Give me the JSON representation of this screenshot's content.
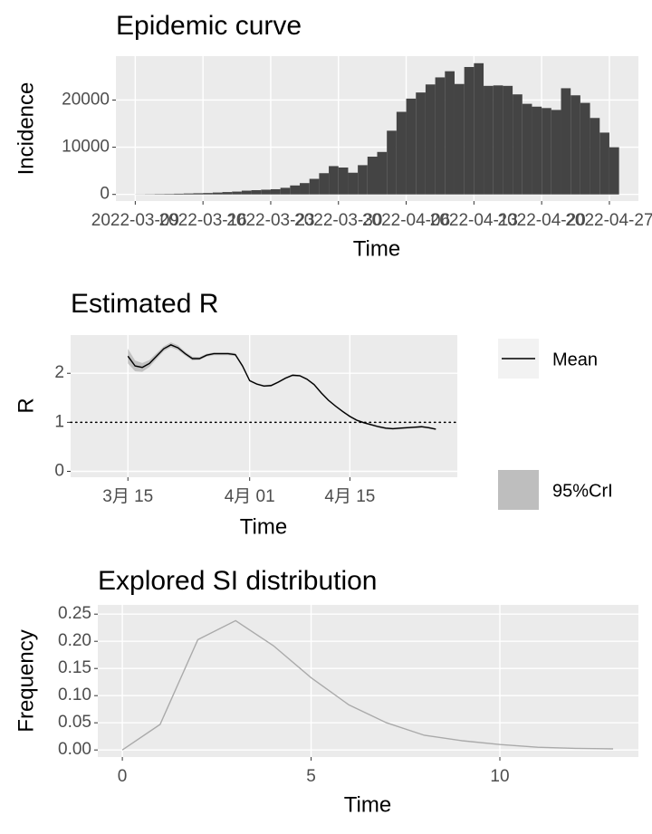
{
  "chart_data": [
    {
      "type": "bar",
      "title": "Epidemic curve",
      "xlabel": "Time",
      "ylabel": "Incidence",
      "x": [
        "2022-03-09",
        "2022-03-10",
        "2022-03-11",
        "2022-03-12",
        "2022-03-13",
        "2022-03-14",
        "2022-03-15",
        "2022-03-16",
        "2022-03-17",
        "2022-03-18",
        "2022-03-19",
        "2022-03-20",
        "2022-03-21",
        "2022-03-22",
        "2022-03-23",
        "2022-03-24",
        "2022-03-25",
        "2022-03-26",
        "2022-03-27",
        "2022-03-28",
        "2022-03-29",
        "2022-03-30",
        "2022-03-31",
        "2022-04-01",
        "2022-04-02",
        "2022-04-03",
        "2022-04-04",
        "2022-04-05",
        "2022-04-06",
        "2022-04-07",
        "2022-04-08",
        "2022-04-09",
        "2022-04-10",
        "2022-04-11",
        "2022-04-12",
        "2022-04-13",
        "2022-04-14",
        "2022-04-15",
        "2022-04-16",
        "2022-04-17",
        "2022-04-18",
        "2022-04-19",
        "2022-04-20",
        "2022-04-21",
        "2022-04-22",
        "2022-04-23",
        "2022-04-24",
        "2022-04-25",
        "2022-04-26",
        "2022-04-27"
      ],
      "values": [
        30,
        50,
        80,
        100,
        150,
        200,
        250,
        300,
        400,
        500,
        600,
        800,
        900,
        1000,
        1100,
        1400,
        1900,
        2400,
        3300,
        4500,
        6000,
        5700,
        4600,
        6200,
        8000,
        9000,
        13500,
        17500,
        20300,
        21600,
        23300,
        24800,
        26100,
        23400,
        27000,
        27800,
        23000,
        23100,
        23000,
        21200,
        19200,
        18600,
        18300,
        17900,
        22500,
        21000,
        19400,
        16200,
        13100,
        10000
      ],
      "color": "#444444",
      "xlim": [
        "2022-03-07",
        "2022-04-30"
      ],
      "xticks": [
        "2022-03-09",
        "2022-03-16",
        "2022-03-23",
        "2022-03-30",
        "2022-04-06",
        "2022-04-13",
        "2022-04-20",
        "2022-04-27"
      ],
      "ylim": [
        -1400,
        29300
      ],
      "yticks": [
        0,
        10000,
        20000
      ],
      "grid": true
    },
    {
      "type": "line",
      "title": "Estimated R",
      "xlabel": "Time",
      "ylabel": "R",
      "x": [
        "2022-03-15",
        "2022-03-16",
        "2022-03-17",
        "2022-03-18",
        "2022-03-19",
        "2022-03-20",
        "2022-03-21",
        "2022-03-22",
        "2022-03-23",
        "2022-03-24",
        "2022-03-25",
        "2022-03-26",
        "2022-03-27",
        "2022-03-28",
        "2022-03-29",
        "2022-03-30",
        "2022-03-31",
        "2022-04-01",
        "2022-04-02",
        "2022-04-03",
        "2022-04-04",
        "2022-04-05",
        "2022-04-06",
        "2022-04-07",
        "2022-04-08",
        "2022-04-09",
        "2022-04-10",
        "2022-04-11",
        "2022-04-12",
        "2022-04-13",
        "2022-04-14",
        "2022-04-15",
        "2022-04-16",
        "2022-04-17",
        "2022-04-18",
        "2022-04-19",
        "2022-04-20",
        "2022-04-21",
        "2022-04-22",
        "2022-04-23",
        "2022-04-24",
        "2022-04-25",
        "2022-04-26",
        "2022-04-27"
      ],
      "series": [
        {
          "name": "Mean",
          "color": "#000000",
          "values": [
            2.35,
            2.15,
            2.12,
            2.2,
            2.35,
            2.5,
            2.58,
            2.52,
            2.4,
            2.3,
            2.3,
            2.37,
            2.4,
            2.4,
            2.4,
            2.38,
            2.15,
            1.85,
            1.78,
            1.74,
            1.75,
            1.82,
            1.9,
            1.96,
            1.95,
            1.88,
            1.77,
            1.6,
            1.45,
            1.33,
            1.22,
            1.12,
            1.04,
            0.99,
            0.95,
            0.91,
            0.88,
            0.87,
            0.88,
            0.89,
            0.9,
            0.91,
            0.89,
            0.86
          ]
        },
        {
          "name": "95%CrI",
          "color": "#bebebe",
          "lower": [
            2.2,
            2.04,
            2.03,
            2.13,
            2.29,
            2.45,
            2.53,
            2.47,
            2.36,
            2.26,
            2.27,
            2.34,
            2.37,
            2.37,
            2.37,
            2.35,
            2.12,
            1.83,
            1.76,
            1.72,
            1.73,
            1.8,
            1.88,
            1.94,
            1.93,
            1.86,
            1.75,
            1.58,
            1.43,
            1.31,
            1.2,
            1.1,
            1.02,
            0.97,
            0.93,
            0.89,
            0.86,
            0.85,
            0.86,
            0.87,
            0.88,
            0.89,
            0.87,
            0.84
          ],
          "upper": [
            2.5,
            2.26,
            2.21,
            2.27,
            2.41,
            2.55,
            2.63,
            2.57,
            2.44,
            2.34,
            2.33,
            2.4,
            2.43,
            2.43,
            2.43,
            2.41,
            2.18,
            1.87,
            1.8,
            1.76,
            1.77,
            1.84,
            1.92,
            1.98,
            1.97,
            1.9,
            1.79,
            1.62,
            1.47,
            1.35,
            1.24,
            1.14,
            1.06,
            1.01,
            0.97,
            0.93,
            0.9,
            0.89,
            0.9,
            0.91,
            0.92,
            0.93,
            0.91,
            0.88
          ]
        }
      ],
      "hline": 1,
      "xlim": [
        "2022-03-07",
        "2022-04-30"
      ],
      "xticks": [
        {
          "value": "2022-03-15",
          "label": "3月 15"
        },
        {
          "value": "2022-04-01",
          "label": "4月 01"
        },
        {
          "value": "2022-04-15",
          "label": "4月 15"
        }
      ],
      "ylim": [
        -0.12,
        2.78
      ],
      "yticks": [
        0,
        1,
        2
      ],
      "grid": true,
      "legend": "right"
    },
    {
      "type": "line",
      "title": "Explored SI distribution",
      "xlabel": "Time",
      "ylabel": "Frequency",
      "x": [
        0,
        1,
        2,
        3,
        4,
        5,
        6,
        7,
        8,
        9,
        10,
        11,
        12,
        13
      ],
      "values": [
        0,
        0.047,
        0.203,
        0.238,
        0.192,
        0.133,
        0.083,
        0.05,
        0.027,
        0.017,
        0.01,
        0.005,
        0.003,
        0.002
      ],
      "color": "#aaaaaa",
      "xlim": [
        -0.65,
        13.67
      ],
      "xticks": [
        0,
        5,
        10
      ],
      "ylim": [
        -0.013,
        0.267
      ],
      "yticks": [
        {
          "value": 0,
          "label": "0.00"
        },
        {
          "value": 0.05,
          "label": "0.05"
        },
        {
          "value": 0.1,
          "label": "0.10"
        },
        {
          "value": 0.15,
          "label": "0.15"
        },
        {
          "value": 0.2,
          "label": "0.20"
        },
        {
          "value": 0.25,
          "label": "0.25"
        }
      ],
      "grid": true
    }
  ]
}
